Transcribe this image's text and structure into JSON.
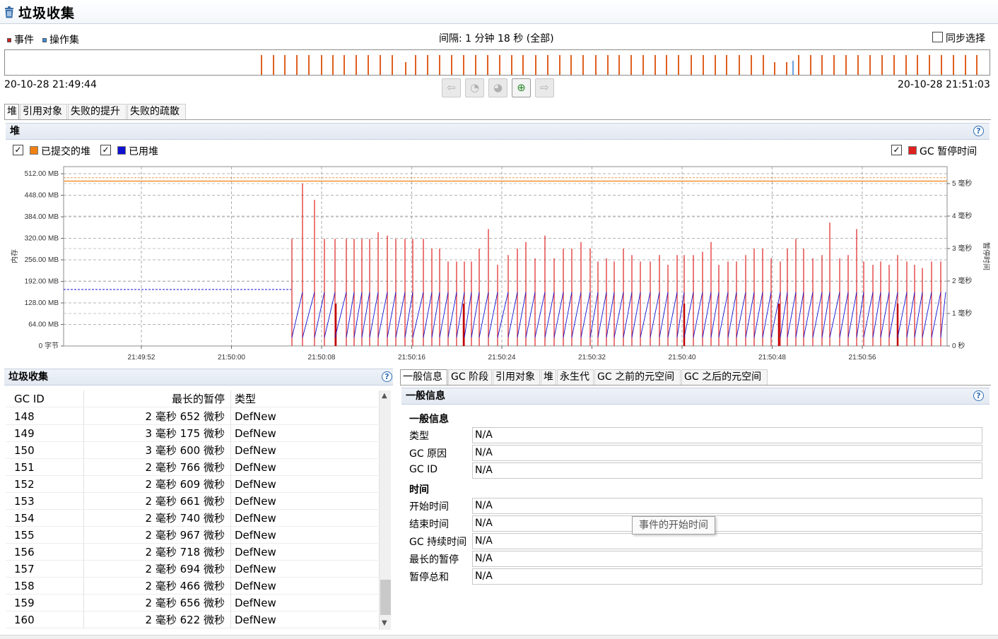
{
  "window": {
    "title": "垃圾收集",
    "icon": "trash-can-icon"
  },
  "legend": {
    "events": "事件",
    "operation_sets": "操作集",
    "events_color": "#d02020",
    "operation_sets_color": "#3a8ee0"
  },
  "interval": "间隔: 1 分钟 18 秒 (全部)",
  "sync_select": {
    "label": "同步选择",
    "checked": false
  },
  "timeline": {
    "start": "20-10-28 21:49:44",
    "end": "20-10-28 21:51:03",
    "tick_color": "#e06020"
  },
  "nav_buttons": [
    {
      "icon": "arrow-left-icon",
      "glyph": "⇦",
      "enabled": false
    },
    {
      "icon": "zoom-out-user-icon",
      "glyph": "◔",
      "enabled": false
    },
    {
      "icon": "zoom-user-icon",
      "glyph": "◕",
      "enabled": false
    },
    {
      "icon": "zoom-in-icon",
      "glyph": "⊕",
      "enabled": true
    },
    {
      "icon": "arrow-right-icon",
      "glyph": "⇨",
      "enabled": false
    }
  ],
  "top_tabs": [
    "堆",
    "引用对象",
    "失败的提升",
    "失败的疏散"
  ],
  "heap_section": {
    "title": "堆",
    "committed_heap": {
      "label": "已提交的堆",
      "checked": true,
      "color": "#f08010"
    },
    "used_heap": {
      "label": "已用堆",
      "checked": true,
      "color": "#1010d0"
    },
    "gc_pause": {
      "label": "GC 暂停时间",
      "checked": true,
      "color": "#e02020"
    }
  },
  "chart_data": {
    "type": "line",
    "ylabel_left": "内存",
    "ylabel_right": "暂停时间",
    "y_left_ticks": [
      "0 字节",
      "64.00 MB",
      "128.00 MB",
      "192.00 MB",
      "256.00 MB",
      "320.00 MB",
      "384.00 MB",
      "448.00 MB",
      "512.00 MB"
    ],
    "y_left_range_mb": [
      0,
      512
    ],
    "y_right_ticks": [
      "0 秒",
      "1 毫秒",
      "2 毫秒",
      "3 毫秒",
      "4 毫秒",
      "5 毫秒"
    ],
    "y_right_range_ms": [
      0,
      5.2
    ],
    "x_ticks": [
      "21:49:52",
      "21:50:00",
      "21:50:08",
      "21:50:16",
      "21:50:24",
      "21:50:32",
      "21:50:40",
      "21:50:48",
      "21:50:56"
    ],
    "series": [
      {
        "name": "已提交的堆",
        "approx_value_mb": 490
      },
      {
        "name": "已用堆",
        "sawtooth_min_mb": 25,
        "sawtooth_max_mb": 160
      },
      {
        "name": "GC 暂停时间",
        "approx_range_ms": [
          2.5,
          5.0
        ]
      }
    ]
  },
  "gc_table": {
    "title": "垃圾收集",
    "headers": [
      "GC ID",
      "最长的暂停",
      "类型"
    ],
    "rows": [
      [
        "148",
        "2 毫秒 652 微秒",
        "DefNew"
      ],
      [
        "149",
        "3 毫秒 175 微秒",
        "DefNew"
      ],
      [
        "150",
        "3 毫秒 600 微秒",
        "DefNew"
      ],
      [
        "151",
        "2 毫秒 766 微秒",
        "DefNew"
      ],
      [
        "152",
        "2 毫秒 609 微秒",
        "DefNew"
      ],
      [
        "153",
        "2 毫秒 661 微秒",
        "DefNew"
      ],
      [
        "154",
        "2 毫秒 740 微秒",
        "DefNew"
      ],
      [
        "155",
        "2 毫秒 967 微秒",
        "DefNew"
      ],
      [
        "156",
        "2 毫秒 718 微秒",
        "DefNew"
      ],
      [
        "157",
        "2 毫秒 694 微秒",
        "DefNew"
      ],
      [
        "158",
        "2 毫秒 466 微秒",
        "DefNew"
      ],
      [
        "159",
        "2 毫秒 656 微秒",
        "DefNew"
      ],
      [
        "160",
        "2 毫秒 622 微秒",
        "DefNew"
      ]
    ]
  },
  "detail_tabs": [
    "一般信息",
    "GC 阶段",
    "引用对象",
    "堆",
    "永生代",
    "GC 之前的元空间",
    "GC 之后的元空间"
  ],
  "detail": {
    "title": "一般信息",
    "group_general": "一般信息",
    "group_time": "时间",
    "fields": [
      {
        "label": "类型",
        "value": "N/A"
      },
      {
        "label": "GC 原因",
        "value": "N/A"
      },
      {
        "label": "GC ID",
        "value": "N/A"
      },
      {
        "label": "开始时间",
        "value": "N/A"
      },
      {
        "label": "结束时间",
        "value": "N/A"
      },
      {
        "label": "GC 持续时间",
        "value": "N/A"
      },
      {
        "label": "最长的暂停",
        "value": "N/A"
      },
      {
        "label": "暂停总和",
        "value": "N/A"
      }
    ]
  },
  "tooltip": "事件的开始时间"
}
